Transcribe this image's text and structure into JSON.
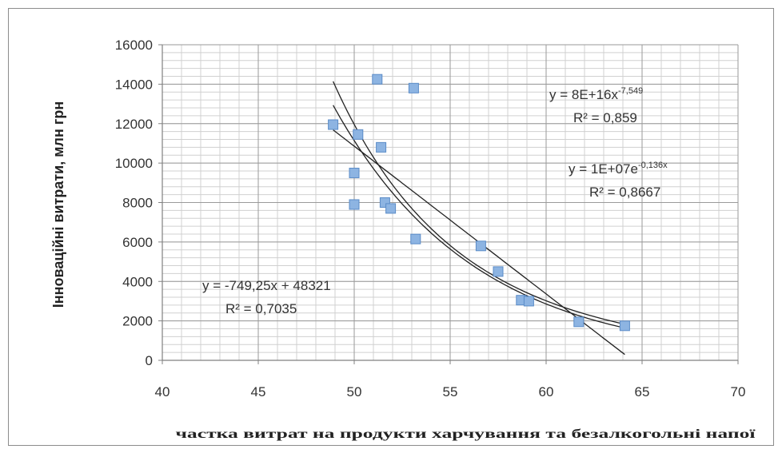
{
  "chart_data": {
    "type": "scatter",
    "xlabel": "частка витрат на продукти харчування та безалкогольні напої",
    "ylabel": "Інноваційні витрати, млн грн",
    "xlim": [
      40,
      70
    ],
    "ylim": [
      0,
      16000
    ],
    "x_ticks": [
      "40",
      "45",
      "50",
      "55",
      "60",
      "65",
      "70"
    ],
    "y_ticks": [
      "0",
      "2000",
      "4000",
      "6000",
      "8000",
      "10000",
      "12000",
      "14000",
      "16000"
    ],
    "grid": true,
    "marker_color": "#8db4e2",
    "marker_edge_color": "#5b8cc8",
    "trendline_color": "#222222",
    "points": [
      {
        "x": 48.9,
        "y": 11950
      },
      {
        "x": 50.0,
        "y": 9500
      },
      {
        "x": 50.0,
        "y": 7900
      },
      {
        "x": 50.2,
        "y": 11450
      },
      {
        "x": 51.2,
        "y": 14250
      },
      {
        "x": 51.4,
        "y": 10800
      },
      {
        "x": 51.6,
        "y": 8000
      },
      {
        "x": 51.9,
        "y": 7700
      },
      {
        "x": 53.1,
        "y": 13800
      },
      {
        "x": 53.2,
        "y": 6150
      },
      {
        "x": 56.6,
        "y": 5800
      },
      {
        "x": 57.5,
        "y": 4500
      },
      {
        "x": 58.7,
        "y": 3050
      },
      {
        "x": 59.1,
        "y": 3000
      },
      {
        "x": 61.7,
        "y": 1950
      },
      {
        "x": 64.1,
        "y": 1750
      }
    ],
    "trendlines": [
      {
        "type": "linear",
        "slope": -749.25,
        "intercept": 48321,
        "x_range": [
          48.9,
          64.1
        ],
        "equation": "y = -749,25x + 48321",
        "r2": "R² = 0,7035"
      },
      {
        "type": "power",
        "a": 8e+16,
        "b": -7.549,
        "x_range": [
          48.9,
          64.1
        ],
        "equation_base": "y = 8E+16x",
        "equation_exp": "-7,549",
        "r2": "R² = 0,859"
      },
      {
        "type": "exponential",
        "a": 10000000.0,
        "b": -0.136,
        "x_range": [
          48.9,
          64.1
        ],
        "equation_base": "y = 1E+07e",
        "equation_exp": "-0,136x",
        "r2": "R² = 0,8667"
      }
    ]
  }
}
